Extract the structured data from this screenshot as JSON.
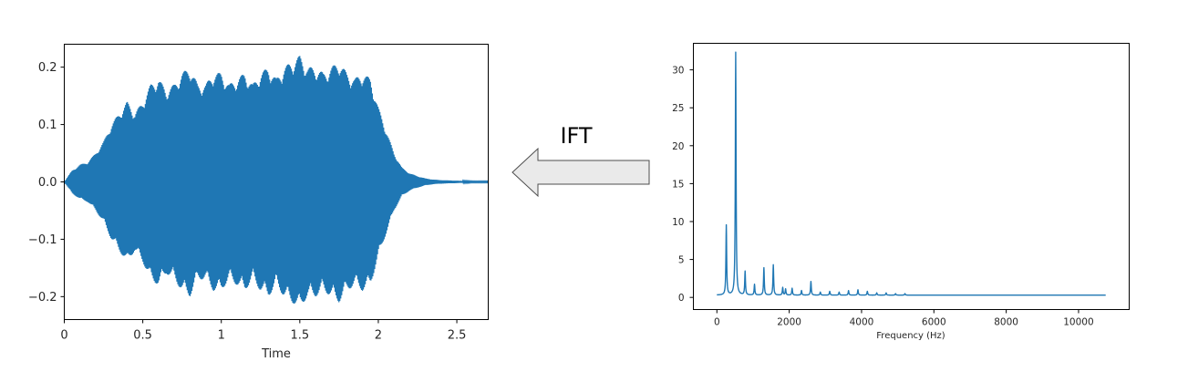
{
  "arrow_label": "IFT",
  "colors": {
    "series": "#1f77b4",
    "axis": "#000000",
    "arrow_fill": "#eaeaea",
    "arrow_stroke": "#4d4d4d"
  },
  "chart_data": [
    {
      "type": "line",
      "title": "",
      "xlabel": "Time",
      "ylabel": "",
      "xlim": [
        0,
        2.7
      ],
      "ylim": [
        -0.24,
        0.24
      ],
      "x_ticks": [
        "0",
        "0.5",
        "1",
        "1.5",
        "2",
        "2.5"
      ],
      "y_ticks": [
        "0.2",
        "0.1",
        "0.0",
        "−0.1",
        "−0.2"
      ],
      "grid": false,
      "envelope": {
        "t": [
          0,
          0.05,
          0.1,
          0.15,
          0.2,
          0.25,
          0.3,
          0.35,
          0.4,
          0.45,
          0.5,
          0.55,
          0.6,
          0.65,
          0.7,
          0.75,
          0.8,
          0.85,
          0.9,
          0.95,
          1.0,
          1.05,
          1.1,
          1.15,
          1.2,
          1.25,
          1.3,
          1.35,
          1.4,
          1.45,
          1.5,
          1.55,
          1.6,
          1.65,
          1.7,
          1.75,
          1.8,
          1.85,
          1.9,
          1.95,
          2.0,
          2.05,
          2.1,
          2.15,
          2.2,
          2.25,
          2.3,
          2.35,
          2.4,
          2.5,
          2.6,
          2.7
        ],
        "amplitude": [
          0.0,
          0.02,
          0.03,
          0.035,
          0.05,
          0.07,
          0.1,
          0.12,
          0.14,
          0.12,
          0.14,
          0.17,
          0.18,
          0.16,
          0.17,
          0.19,
          0.2,
          0.17,
          0.17,
          0.19,
          0.19,
          0.17,
          0.18,
          0.19,
          0.17,
          0.19,
          0.2,
          0.18,
          0.2,
          0.21,
          0.22,
          0.2,
          0.2,
          0.19,
          0.2,
          0.21,
          0.19,
          0.18,
          0.19,
          0.18,
          0.13,
          0.09,
          0.05,
          0.025,
          0.015,
          0.01,
          0.006,
          0.004,
          0.003,
          0.002,
          0.001,
          0.001
        ]
      }
    },
    {
      "type": "line",
      "title": "",
      "xlabel": "Frequency (Hz)",
      "ylabel": "",
      "xlim": [
        -650,
        11400
      ],
      "ylim": [
        -1.6,
        33.5
      ],
      "x_ticks": [
        "0",
        "2000",
        "4000",
        "6000",
        "8000",
        "10000"
      ],
      "y_ticks": [
        "30",
        "25",
        "20",
        "15",
        "10",
        "5",
        "0"
      ],
      "grid": false,
      "baseline": 0.3,
      "x_end": 10750,
      "peaks": [
        {
          "f": 260,
          "a": 9.2
        },
        {
          "f": 520,
          "a": 32.0
        },
        {
          "f": 780,
          "a": 3.1
        },
        {
          "f": 1040,
          "a": 1.4
        },
        {
          "f": 1300,
          "a": 3.6
        },
        {
          "f": 1560,
          "a": 4.0
        },
        {
          "f": 1820,
          "a": 1.0
        },
        {
          "f": 1900,
          "a": 0.8
        },
        {
          "f": 2080,
          "a": 0.9
        },
        {
          "f": 2340,
          "a": 0.6
        },
        {
          "f": 2600,
          "a": 1.8
        },
        {
          "f": 2860,
          "a": 0.4
        },
        {
          "f": 3120,
          "a": 0.5
        },
        {
          "f": 3380,
          "a": 0.4
        },
        {
          "f": 3640,
          "a": 0.6
        },
        {
          "f": 3900,
          "a": 0.7
        },
        {
          "f": 4160,
          "a": 0.5
        },
        {
          "f": 4420,
          "a": 0.3
        },
        {
          "f": 4680,
          "a": 0.3
        },
        {
          "f": 4940,
          "a": 0.2
        },
        {
          "f": 5200,
          "a": 0.2
        }
      ]
    }
  ]
}
